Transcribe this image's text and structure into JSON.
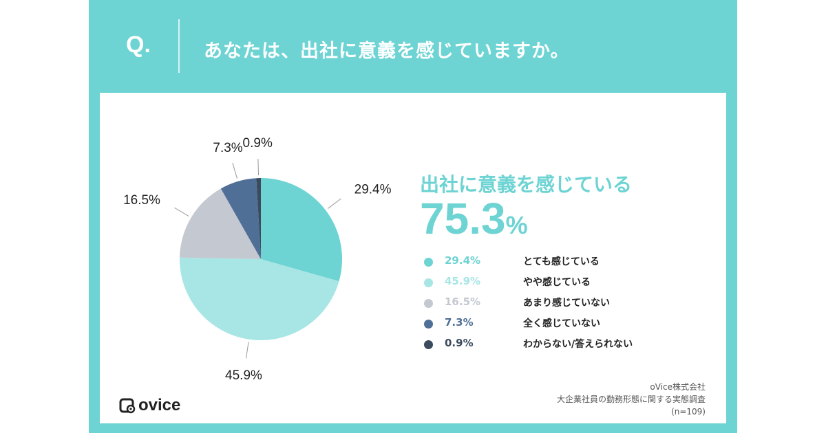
{
  "question": {
    "prefix": "Q.",
    "title": "あなたは、出社に意義を感じていますか。"
  },
  "summary": {
    "label": "出社に意義を感じている",
    "value": "75.3",
    "unit": "%"
  },
  "legend": [
    {
      "pct": "29.4%",
      "label": "とても感じている",
      "color": "#6dd3d3"
    },
    {
      "pct": "45.9%",
      "label": "やや感じている",
      "color": "#a8e5e5"
    },
    {
      "pct": "16.5%",
      "label": "あまり感じていない",
      "color": "#c4c8d0"
    },
    {
      "pct": "7.3%",
      "label": "全く感じていない",
      "color": "#4f6f96"
    },
    {
      "pct": "0.9%",
      "label": "わからない/答えられない",
      "color": "#3b4a5c"
    }
  ],
  "chart_data": {
    "type": "pie",
    "categories": [
      "とても感じている",
      "やや感じている",
      "あまり感じていない",
      "全く感じていない",
      "わからない/答えられない"
    ],
    "values": [
      29.4,
      45.9,
      16.5,
      7.3,
      0.9
    ],
    "labels": [
      "29.4%",
      "45.9%",
      "16.5%",
      "7.3%",
      "0.9%"
    ],
    "colors": [
      "#6dd3d3",
      "#a8e5e5",
      "#c4c8d0",
      "#4f6f96",
      "#3b4a5c"
    ]
  },
  "brand": {
    "logo_text": "ovice"
  },
  "source": {
    "company": "oVice株式会社",
    "survey": "大企業社員の勤務形態に関する実態調査",
    "sample": "(n=109)"
  }
}
